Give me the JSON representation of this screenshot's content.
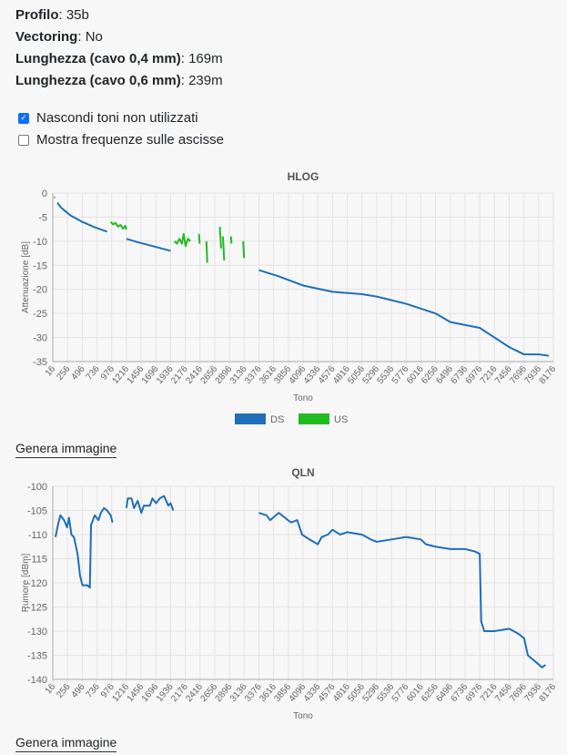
{
  "info": [
    {
      "label": "Profilo",
      "value": "35b"
    },
    {
      "label": "Vectoring",
      "value": "No"
    },
    {
      "label": "Lunghezza (cavo 0,4 mm)",
      "value": "169m"
    },
    {
      "label": "Lunghezza (cavo 0,6 mm)",
      "value": "239m"
    }
  ],
  "options": [
    {
      "label": "Nascondi toni non utilizzati",
      "checked": true
    },
    {
      "label": "Mostra frequenze sulle ascisse",
      "checked": false
    }
  ],
  "generate_label": "Genera immagine",
  "chart_data": [
    {
      "type": "line",
      "title": "HLOG",
      "xlabel": "Tono",
      "ylabel": "Attenuazione [dB]",
      "ylim": [
        -35,
        0
      ],
      "yticks": [
        0,
        -5,
        -10,
        -15,
        -20,
        -25,
        -30,
        -35
      ],
      "xticks": [
        "16",
        "256",
        "496",
        "736",
        "976",
        "1216",
        "1456",
        "1696",
        "1936",
        "2176",
        "2416",
        "2656",
        "2896",
        "3136",
        "3376",
        "3616",
        "3856",
        "4096",
        "4336",
        "4576",
        "4816",
        "5056",
        "5296",
        "5536",
        "5776",
        "6016",
        "6256",
        "6496",
        "6736",
        "6976",
        "7216",
        "7456",
        "7696",
        "7936",
        "8176"
      ],
      "xlim": [
        16,
        8176
      ],
      "legend": "bottom",
      "series": [
        {
          "name": "DS",
          "color": "#1f6fb8",
          "segments": [
            [
              [
                90,
                -2
              ],
              [
                150,
                -3
              ],
              [
                300,
                -4.6
              ],
              [
                500,
                -6
              ],
              [
                700,
                -7.1
              ],
              [
                900,
                -8
              ]
            ],
            [
              [
                1216,
                -9.5
              ],
              [
                1400,
                -10.2
              ],
              [
                1700,
                -11.2
              ],
              [
                1936,
                -12
              ]
            ],
            [
              [
                3376,
                -16
              ],
              [
                3700,
                -17.3
              ],
              [
                4096,
                -19.2
              ],
              [
                4576,
                -20.5
              ],
              [
                5056,
                -21
              ],
              [
                5296,
                -21.5
              ],
              [
                5776,
                -23
              ],
              [
                6256,
                -25
              ],
              [
                6496,
                -26.8
              ],
              [
                6976,
                -28
              ],
              [
                7216,
                -30
              ],
              [
                7456,
                -32
              ],
              [
                7696,
                -33.5
              ],
              [
                7936,
                -33.5
              ],
              [
                8100,
                -33.8
              ]
            ]
          ]
        },
        {
          "name": "US",
          "color": "#22bb22",
          "segments": [
            [
              [
                40,
                -0.8
              ],
              [
                50,
                -1
              ]
            ],
            [
              [
                960,
                -6
              ],
              [
                1000,
                -6.5
              ],
              [
                1040,
                -6.2
              ],
              [
                1080,
                -7
              ],
              [
                1120,
                -6.6
              ],
              [
                1160,
                -7.4
              ],
              [
                1200,
                -6.8
              ],
              [
                1216,
                -7.6
              ]
            ],
            [
              [
                2000,
                -10
              ],
              [
                2040,
                -10.5
              ],
              [
                2080,
                -9.5
              ],
              [
                2120,
                -10.5
              ],
              [
                2150,
                -8.5
              ],
              [
                2180,
                -11
              ],
              [
                2220,
                -9.5
              ],
              [
                2260,
                -10
              ]
            ],
            [
              [
                2400,
                -8.5
              ],
              [
                2410,
                -10.5
              ]
            ],
            [
              [
                2520,
                -10
              ],
              [
                2535,
                -14.5
              ]
            ],
            [
              [
                2740,
                -7
              ],
              [
                2760,
                -11.5
              ]
            ],
            [
              [
                2790,
                -9
              ],
              [
                2810,
                -14
              ]
            ],
            [
              [
                2920,
                -9
              ],
              [
                2930,
                -10.5
              ]
            ],
            [
              [
                3120,
                -10
              ],
              [
                3135,
                -13.5
              ]
            ]
          ]
        }
      ]
    },
    {
      "type": "line",
      "title": "QLN",
      "xlabel": "Tono",
      "ylabel": "Rumore [dBm]",
      "ylim": [
        -140,
        -100
      ],
      "yticks": [
        -100,
        -105,
        -110,
        -115,
        -120,
        -125,
        -130,
        -135,
        -140
      ],
      "xticks": [
        "16",
        "256",
        "496",
        "736",
        "976",
        "1216",
        "1456",
        "1696",
        "1936",
        "2176",
        "2416",
        "2656",
        "2896",
        "3136",
        "3376",
        "3616",
        "3856",
        "4096",
        "4336",
        "4576",
        "4816",
        "5056",
        "5296",
        "5536",
        "5776",
        "6016",
        "6256",
        "6496",
        "6736",
        "6976",
        "7216",
        "7456",
        "7696",
        "7936",
        "8176"
      ],
      "xlim": [
        16,
        8176
      ],
      "series": [
        {
          "name": "QLN",
          "color": "#1f6fb8",
          "segments": [
            [
              [
                60,
                -110.5
              ],
              [
                100,
                -108
              ],
              [
                140,
                -106
              ],
              [
                200,
                -107
              ],
              [
                250,
                -108.5
              ],
              [
                280,
                -106.5
              ],
              [
                320,
                -110
              ],
              [
                360,
                -110.5
              ],
              [
                420,
                -114
              ],
              [
                460,
                -118.5
              ],
              [
                500,
                -120.5
              ],
              [
                580,
                -120.5
              ],
              [
                620,
                -121
              ],
              [
                640,
                -108
              ],
              [
                700,
                -106
              ],
              [
                760,
                -107
              ],
              [
                800,
                -105.5
              ],
              [
                850,
                -104.5
              ],
              [
                900,
                -105
              ],
              [
                960,
                -106
              ],
              [
                990,
                -107.5
              ]
            ],
            [
              [
                1216,
                -104.5
              ],
              [
                1240,
                -102.5
              ],
              [
                1300,
                -102.5
              ],
              [
                1340,
                -104.5
              ],
              [
                1400,
                -103
              ],
              [
                1460,
                -105.5
              ],
              [
                1500,
                -104
              ],
              [
                1600,
                -104
              ],
              [
                1640,
                -102.5
              ],
              [
                1700,
                -103.5
              ],
              [
                1760,
                -102.5
              ],
              [
                1830,
                -102
              ],
              [
                1900,
                -104
              ],
              [
                1936,
                -103.5
              ],
              [
                1980,
                -105
              ]
            ],
            [
              [
                3376,
                -105.5
              ],
              [
                3500,
                -106
              ],
              [
                3560,
                -107
              ],
              [
                3700,
                -105.5
              ],
              [
                3800,
                -106.5
              ],
              [
                3900,
                -107.5
              ],
              [
                4000,
                -107
              ],
              [
                4080,
                -110
              ],
              [
                4200,
                -111
              ],
              [
                4336,
                -112
              ],
              [
                4400,
                -110.5
              ],
              [
                4500,
                -110
              ],
              [
                4576,
                -109
              ],
              [
                4700,
                -110
              ],
              [
                4816,
                -109.5
              ],
              [
                5056,
                -110
              ],
              [
                5200,
                -111
              ],
              [
                5296,
                -111.5
              ],
              [
                5536,
                -111
              ],
              [
                5776,
                -110.5
              ],
              [
                6016,
                -111
              ],
              [
                6100,
                -112
              ],
              [
                6256,
                -112.5
              ],
              [
                6496,
                -113
              ],
              [
                6736,
                -113
              ],
              [
                6900,
                -113.5
              ],
              [
                6976,
                -114
              ],
              [
                7000,
                -128
              ],
              [
                7050,
                -130
              ],
              [
                7216,
                -130
              ],
              [
                7456,
                -129.5
              ],
              [
                7600,
                -130.5
              ],
              [
                7700,
                -131.5
              ],
              [
                7760,
                -135
              ],
              [
                7900,
                -136.5
              ],
              [
                7990,
                -137.5
              ],
              [
                8050,
                -137
              ]
            ]
          ]
        }
      ]
    }
  ]
}
